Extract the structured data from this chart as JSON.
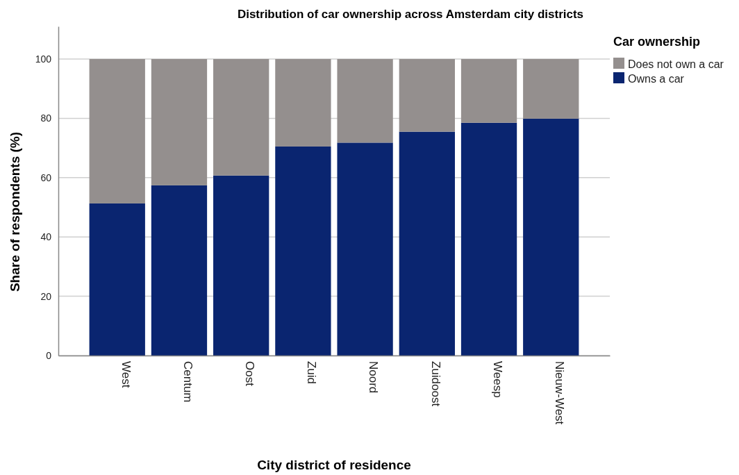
{
  "chart_data": {
    "type": "bar",
    "title": "Distribution of car ownership across Amsterdam city districts",
    "xlabel": "City district of residence",
    "ylabel": "Share of respondents (%)",
    "legend_title": "Car ownership",
    "categories": [
      "West",
      "Centum",
      "Oost",
      "Zuid",
      "Noord",
      "Zuidoost",
      "Weesp",
      "Nieuw-West"
    ],
    "series": [
      {
        "name": "Owns a car",
        "color": "#0a2570",
        "values": [
          51.3,
          57.4,
          60.7,
          70.5,
          71.8,
          75.5,
          78.5,
          79.9
        ]
      },
      {
        "name": "Does not own a car",
        "color": "#948f8e",
        "values": [
          48.7,
          42.6,
          39.3,
          29.5,
          28.2,
          24.5,
          21.5,
          20.1
        ]
      }
    ],
    "stacked": true,
    "ylim": [
      0,
      111
    ],
    "yticks": [
      0,
      20,
      40,
      60,
      80,
      100
    ],
    "grid": "y",
    "legend": "top right"
  }
}
